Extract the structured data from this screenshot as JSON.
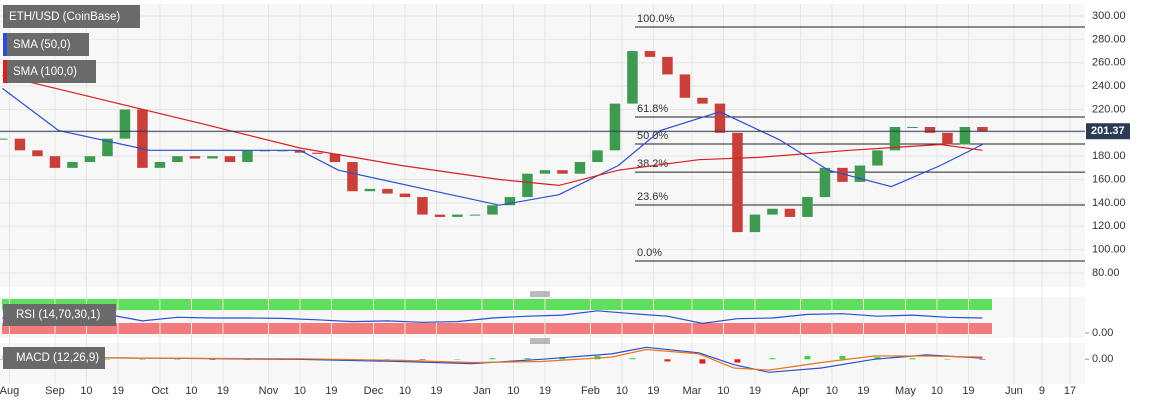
{
  "chart_data": {
    "type": "candlestick",
    "title": "ETH/USD (CoinBase)",
    "up_color": "#3d9a50",
    "down_color": "#c9403a",
    "x": [
      16,
      21,
      26,
      31,
      36,
      41,
      46,
      51,
      56,
      61,
      66,
      71,
      76,
      81,
      86,
      91,
      96,
      101,
      106,
      111,
      116,
      121,
      126,
      131,
      136,
      141,
      146,
      151,
      156,
      161,
      166,
      171,
      176,
      181,
      186,
      191,
      196,
      201,
      206,
      211,
      216,
      221,
      226,
      231,
      236,
      241,
      246,
      251,
      256,
      261,
      266,
      271,
      276,
      281,
      286,
      291,
      296
    ],
    "close": [
      195,
      185,
      180,
      170,
      175,
      180,
      195,
      220,
      170,
      175,
      180,
      178,
      180,
      175,
      185,
      185,
      185,
      183,
      182,
      175,
      150,
      152,
      148,
      145,
      130,
      128,
      130,
      130,
      138,
      145,
      165,
      168,
      165,
      175,
      185,
      225,
      270,
      265,
      250,
      230,
      225,
      200,
      115,
      130,
      135,
      128,
      145,
      170,
      158,
      172,
      185,
      205,
      205,
      200,
      190,
      205,
      201
    ],
    "series": [
      {
        "name": "SMA (50,0)",
        "color": "#2b4fd0",
        "x": [
          16,
          32,
          58,
          101,
          112,
          138,
          158,
          175,
          192,
          204,
          221,
          238,
          252,
          270,
          284,
          296
        ],
        "values": [
          238,
          202,
          185,
          185,
          168,
          151,
          138,
          147,
          172,
          202,
          218,
          194,
          168,
          154,
          172,
          190
        ]
      },
      {
        "name": "SMA (100,0)",
        "color": "#d82020",
        "x": [
          16,
          45,
          74,
          101,
          130,
          158,
          175,
          192,
          215,
          232,
          258,
          284,
          296
        ],
        "values": [
          249,
          228,
          207,
          187,
          172,
          160,
          155,
          168,
          177,
          179,
          185,
          190,
          185
        ]
      }
    ],
    "last_price": {
      "value": 201.37,
      "label": "201.37"
    },
    "fib": [
      {
        "label": "100.0%",
        "value": 290.6
      },
      {
        "label": "61.8%",
        "value": 213.5
      },
      {
        "label": "50.0%",
        "value": 190.4
      },
      {
        "label": "38.2%",
        "value": 166.4
      },
      {
        "label": "23.6%",
        "value": 138.2
      },
      {
        "label": "0.0%",
        "value": 90.3
      }
    ],
    "xlim": [
      15.3,
      325.3
    ],
    "xticks": [
      {
        "value": 18,
        "label": "Aug"
      },
      {
        "value": 31,
        "label": "Sep"
      },
      {
        "value": 40,
        "label": "10"
      },
      {
        "value": 49,
        "label": "19"
      },
      {
        "value": 61,
        "label": "Oct"
      },
      {
        "value": 70,
        "label": "10"
      },
      {
        "value": 79,
        "label": "19"
      },
      {
        "value": 92,
        "label": "Nov"
      },
      {
        "value": 101,
        "label": "10"
      },
      {
        "value": 110,
        "label": "19"
      },
      {
        "value": 122,
        "label": "Dec"
      },
      {
        "value": 131,
        "label": "10"
      },
      {
        "value": 140,
        "label": "19"
      },
      {
        "value": 153,
        "label": "Jan"
      },
      {
        "value": 162,
        "label": "10"
      },
      {
        "value": 171,
        "label": "19"
      },
      {
        "value": 184,
        "label": "Feb"
      },
      {
        "value": 193,
        "label": "10"
      },
      {
        "value": 202,
        "label": "19"
      },
      {
        "value": 213,
        "label": "Mar"
      },
      {
        "value": 222,
        "label": "10"
      },
      {
        "value": 231,
        "label": "19"
      },
      {
        "value": 244,
        "label": "Apr"
      },
      {
        "value": 253,
        "label": "10"
      },
      {
        "value": 262,
        "label": "19"
      },
      {
        "value": 274,
        "label": "May"
      },
      {
        "value": 283,
        "label": "10"
      },
      {
        "value": 292,
        "label": "19"
      },
      {
        "value": 305,
        "label": "Jun"
      },
      {
        "value": 313,
        "label": "9"
      },
      {
        "value": 321,
        "label": "17"
      }
    ],
    "ylim": [
      80,
      300
    ],
    "yticks": [
      {
        "value": 80,
        "label": "80.00"
      },
      {
        "value": 100,
        "label": "100.00"
      },
      {
        "value": 120,
        "label": "120.00"
      },
      {
        "value": 140,
        "label": "140.00"
      },
      {
        "value": 160,
        "label": "160.00"
      },
      {
        "value": 180,
        "label": "180.00"
      },
      {
        "value": 200,
        "label": "200.00"
      },
      {
        "value": 220,
        "label": "220.00"
      },
      {
        "value": 240,
        "label": "240.00"
      },
      {
        "value": 260,
        "label": "260.00"
      },
      {
        "value": 280,
        "label": "280.00"
      },
      {
        "value": 300,
        "label": "300.00"
      }
    ],
    "rsi": {
      "title": "RSI (14,70,30,1)",
      "color": "#2b4fd0",
      "ylim": [
        0,
        100
      ],
      "yticks": [
        {
          "value": 0,
          "label": "0.00"
        }
      ],
      "x": [
        16,
        26,
        36,
        46,
        56,
        66,
        76,
        86,
        96,
        106,
        116,
        126,
        136,
        146,
        156,
        166,
        176,
        186,
        196,
        206,
        216,
        226,
        236,
        246,
        256,
        266,
        276,
        286,
        296
      ],
      "values": [
        50,
        45,
        48,
        60,
        42,
        52,
        50,
        50,
        49,
        45,
        40,
        42,
        38,
        40,
        50,
        55,
        58,
        70,
        62,
        55,
        35,
        48,
        50,
        60,
        62,
        55,
        58,
        52,
        50
      ]
    },
    "macd": {
      "title": "MACD (12,26,9)",
      "ylim": [
        -20,
        15
      ],
      "yticks": [
        {
          "value": 0,
          "label": "0.00"
        }
      ],
      "up_color": "#3bd24a",
      "down_color": "#e02020",
      "lines": [
        {
          "color": "#2b4fd0",
          "x": [
            16,
            60,
            100,
            130,
            150,
            170,
            190,
            200,
            215,
            225,
            235,
            250,
            265,
            280,
            296
          ],
          "values": [
            2,
            1,
            0,
            -2,
            -4,
            0,
            5,
            11,
            6,
            -5,
            -12,
            -8,
            0,
            4,
            1
          ]
        },
        {
          "color": "#e8751a",
          "x": [
            16,
            60,
            100,
            130,
            150,
            170,
            190,
            200,
            215,
            225,
            235,
            250,
            265,
            280,
            296
          ],
          "values": [
            2,
            1,
            0.5,
            -1,
            -3,
            -2,
            2,
            9,
            5,
            -8,
            -10,
            -3,
            3,
            3,
            2
          ]
        }
      ],
      "hist_x": [
        16,
        26,
        36,
        46,
        56,
        66,
        76,
        86,
        96,
        106,
        116,
        126,
        136,
        146,
        156,
        166,
        176,
        186,
        196,
        206,
        216,
        226,
        236,
        246,
        256,
        266,
        276,
        286,
        296
      ],
      "hist": [
        0,
        0,
        0,
        0,
        0,
        0,
        -0.5,
        0,
        0,
        0,
        0,
        0,
        -0.5,
        0,
        1,
        1,
        2,
        3,
        1,
        -2,
        -4,
        -3,
        1,
        3,
        3,
        2,
        1,
        0,
        -0.5
      ]
    }
  }
}
